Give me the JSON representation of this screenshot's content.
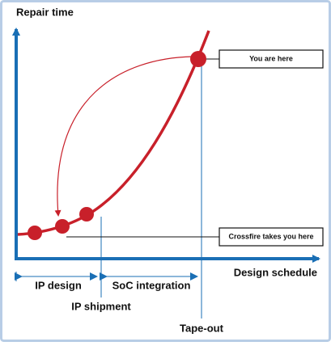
{
  "axes": {
    "y_label": "Repair time",
    "x_label": "Design schedule"
  },
  "callouts": [
    {
      "label": "You are here"
    },
    {
      "label": "Crossfire takes you here"
    }
  ],
  "phases": [
    {
      "label": "IP design"
    },
    {
      "label": "SoC integration"
    }
  ],
  "milestones": [
    {
      "label": "IP shipment"
    },
    {
      "label": "Tape-out"
    }
  ]
}
